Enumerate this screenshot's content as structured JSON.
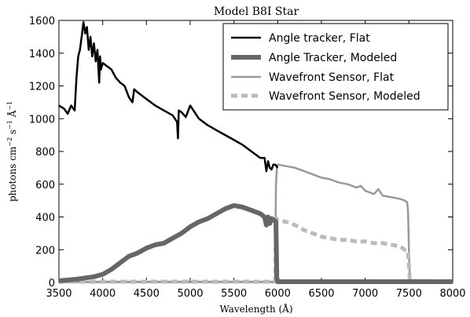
{
  "chart_data": {
    "type": "line",
    "title": "Model B8I Star",
    "xlabel": "Wavelength (Å)",
    "ylabel_main": "photons cm",
    "ylabel_exp1": "−2",
    "ylabel_mid": " s",
    "ylabel_exp2": "−1",
    "ylabel_end": " Å",
    "ylabel_exp3": "−1",
    "xlim": [
      3500,
      8000
    ],
    "ylim": [
      0,
      1600
    ],
    "xticks": [
      "3500",
      "4000",
      "4500",
      "5000",
      "5500",
      "6000",
      "6500",
      "7000",
      "7500",
      "8000"
    ],
    "yticks": [
      "0",
      "200",
      "400",
      "600",
      "800",
      "1000",
      "1200",
      "1400",
      "1600"
    ],
    "legend_position": "top-right",
    "series": [
      {
        "name": "Angle tracker, Flat",
        "color": "#000000",
        "style": "solid",
        "x": [
          3500,
          3560,
          3600,
          3640,
          3680,
          3700,
          3720,
          3740,
          3760,
          3780,
          3800,
          3820,
          3840,
          3860,
          3880,
          3900,
          3920,
          3940,
          3960,
          3970,
          3980,
          4000,
          4050,
          4100,
          4150,
          4200,
          4250,
          4300,
          4340,
          4360,
          4400,
          4500,
          4600,
          4700,
          4800,
          4850,
          4860,
          4870,
          4900,
          4950,
          5000,
          5100,
          5200,
          5300,
          5400,
          5500,
          5600,
          5700,
          5800,
          5850,
          5870,
          5890,
          5910,
          5930,
          5950,
          5970,
          6000
        ],
        "y": [
          1080,
          1060,
          1030,
          1080,
          1050,
          1250,
          1380,
          1420,
          1500,
          1590,
          1520,
          1560,
          1420,
          1500,
          1380,
          1460,
          1350,
          1420,
          1220,
          1380,
          1300,
          1340,
          1320,
          1300,
          1250,
          1220,
          1200,
          1130,
          1100,
          1180,
          1160,
          1120,
          1080,
          1050,
          1020,
          980,
          880,
          1050,
          1040,
          1010,
          1080,
          1000,
          960,
          930,
          900,
          870,
          840,
          800,
          760,
          760,
          680,
          740,
          700,
          690,
          720,
          720,
          700
        ]
      },
      {
        "name": "Angle Tracker, Modeled",
        "color": "#666666",
        "style": "thick",
        "x": [
          3500,
          3700,
          3900,
          4000,
          4100,
          4200,
          4300,
          4400,
          4500,
          4600,
          4700,
          4800,
          4900,
          5000,
          5100,
          5200,
          5300,
          5400,
          5500,
          5600,
          5700,
          5800,
          5850,
          5870,
          5890,
          5910,
          5930,
          5960,
          5980,
          5990,
          6000,
          8000
        ],
        "y": [
          10,
          20,
          35,
          50,
          80,
          120,
          160,
          180,
          210,
          230,
          240,
          270,
          300,
          340,
          370,
          390,
          420,
          450,
          470,
          460,
          440,
          420,
          400,
          350,
          400,
          360,
          390,
          380,
          370,
          30,
          5,
          5
        ]
      },
      {
        "name": "Wavefront Sensor, Flat",
        "color": "#999999",
        "style": "solid",
        "x": [
          3500,
          5970,
          5980,
          5990,
          6000,
          6100,
          6200,
          6300,
          6400,
          6500,
          6600,
          6700,
          6800,
          6900,
          6950,
          7000,
          7050,
          7100,
          7150,
          7200,
          7300,
          7400,
          7450,
          7480,
          7490,
          7500,
          7510,
          8000
        ],
        "y": [
          5,
          5,
          600,
          690,
          720,
          710,
          700,
          680,
          660,
          640,
          630,
          610,
          600,
          580,
          590,
          560,
          550,
          540,
          570,
          530,
          520,
          510,
          500,
          490,
          430,
          200,
          10,
          5
        ]
      },
      {
        "name": "Wavefront Sensor, Modeled",
        "color": "#bbbbbb",
        "style": "dashed",
        "x": [
          3500,
          5970,
          5980,
          5990,
          6000,
          6100,
          6200,
          6300,
          6400,
          6500,
          6600,
          6700,
          6800,
          6900,
          7000,
          7100,
          7200,
          7300,
          7400,
          7450,
          7480,
          7490,
          7500,
          7510,
          8000
        ],
        "y": [
          5,
          5,
          350,
          390,
          380,
          370,
          350,
          320,
          300,
          280,
          270,
          260,
          260,
          250,
          250,
          240,
          240,
          230,
          220,
          200,
          200,
          180,
          100,
          10,
          5
        ]
      }
    ]
  }
}
